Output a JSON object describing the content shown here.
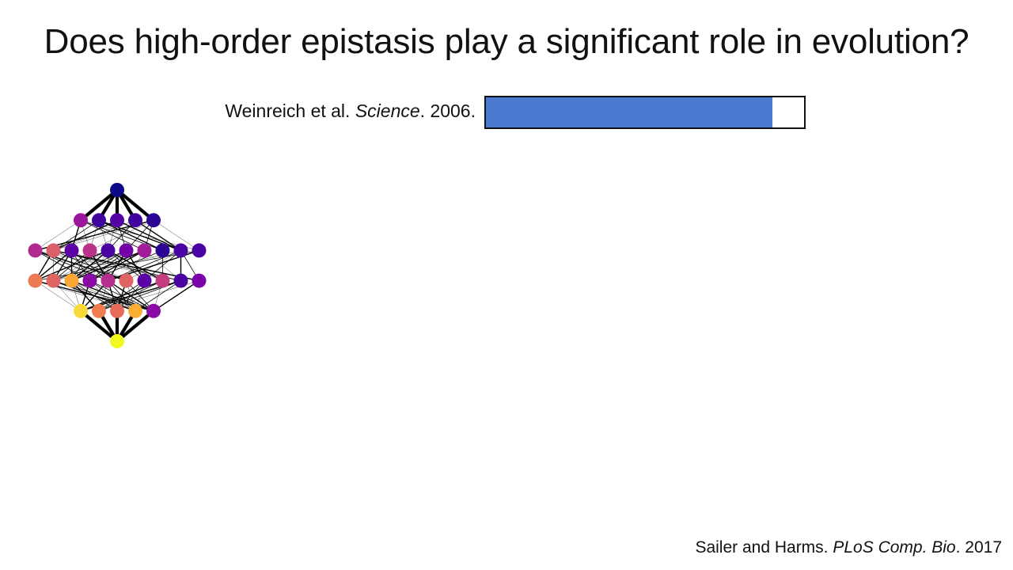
{
  "title": "Does high-order epistasis play a significant role in evolution?",
  "citation": {
    "authors": "Weinreich et al.",
    "journal": "Science",
    "year": "2006."
  },
  "progress": {
    "fraction": 0.9,
    "fill_color": "#4a7bd0"
  },
  "network": {
    "node_colors": [
      [
        "#0d0887"
      ],
      [
        "#9c179e",
        "#3e049c",
        "#5402a3",
        "#3e049c",
        "#2c0594"
      ],
      [
        "#b02a90",
        "#dc5f6b",
        "#5b01a5",
        "#b83289",
        "#4a02a0",
        "#7201a8",
        "#a21d9a",
        "#2c0594",
        "#4a02a0",
        "#4a02a0"
      ],
      [
        "#ee7a53",
        "#e06462",
        "#fca636",
        "#8b0aa5",
        "#b52f8c",
        "#e06462",
        "#5c01a6",
        "#c43e7f",
        "#4a02a0",
        "#7a02a8"
      ],
      [
        "#f9d93a",
        "#ef7d50",
        "#e76a5b",
        "#fbae34",
        "#8a0aa5"
      ],
      [
        "#f0f921"
      ]
    ]
  },
  "footer": {
    "authors": "Sailer and Harms.",
    "journal": "PLoS Comp. Bio",
    "year": ". 2017"
  }
}
